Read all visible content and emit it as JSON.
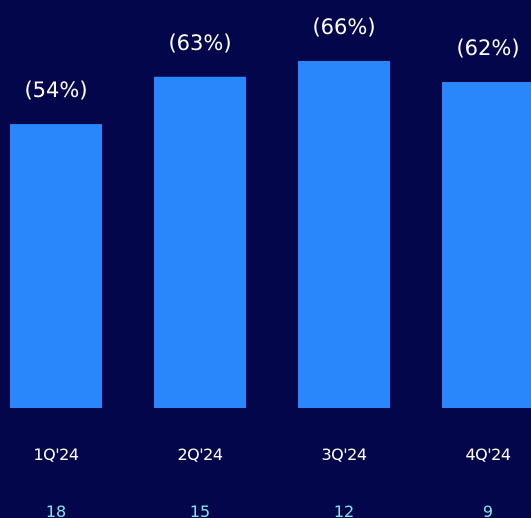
{
  "chart_data": {
    "type": "bar",
    "categories": [
      "1Q'24",
      "2Q'24",
      "3Q'24",
      "4Q'24"
    ],
    "values": [
      54,
      63,
      66,
      62
    ],
    "value_labels": [
      "(54%)",
      "(63%)",
      "(66%)",
      "(62%)"
    ],
    "sub_values": [
      "18",
      "15",
      "12",
      "9"
    ],
    "ylim": [
      0,
      66
    ],
    "grid": false,
    "legend": "none"
  },
  "colors": {
    "background": "#03064a",
    "bar": "#2a86fb",
    "label_text": "#ffffff",
    "sub_value_text": "#7ee6ea"
  }
}
